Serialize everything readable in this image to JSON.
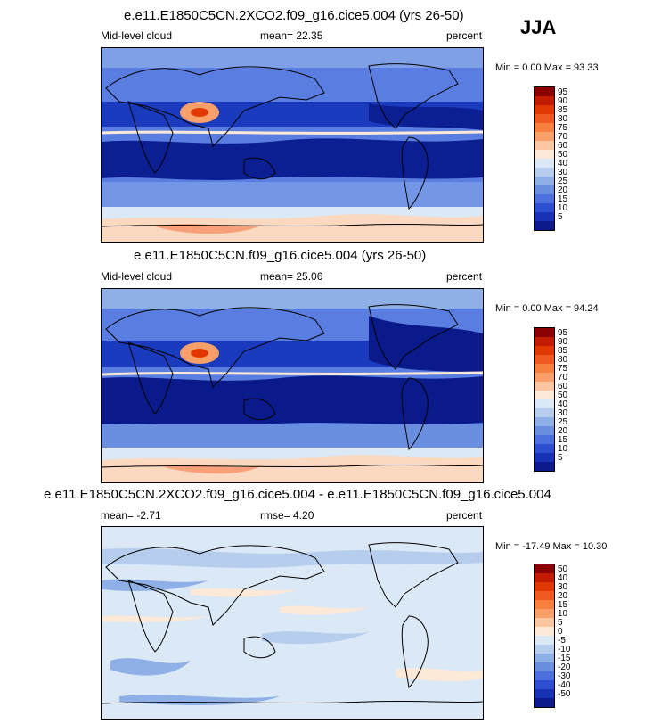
{
  "season": "JJA",
  "panels": [
    {
      "title": "e.e11.E1850C5CN.2XCO2.f09_g16.cice5.004 (yrs 26-50)",
      "left_label": "Mid-level cloud",
      "center_label": "mean=  22.35",
      "right_label": "percent",
      "minmax": "Min =   0.00 Max =  93.33"
    },
    {
      "title": "e.e11.E1850C5CN.f09_g16.cice5.004 (yrs 26-50)",
      "left_label": "Mid-level cloud",
      "center_label": "mean=  25.06",
      "right_label": "percent",
      "minmax": "Min =   0.00 Max =  94.24"
    },
    {
      "title": "e.e11.E1850C5CN.2XCO2.f09_g16.cice5.004 - e.e11.E1850C5CN.f09_g16.cice5.004",
      "left_label": "mean=  -2.71",
      "center_label": "rmse=  4.20",
      "right_label": "percent",
      "minmax": "Min = -17.49 Max =  10.30"
    }
  ],
  "legend_abs": {
    "labels": [
      "95",
      "90",
      "85",
      "80",
      "75",
      "70",
      "60",
      "50",
      "40",
      "30",
      "25",
      "20",
      "15",
      "10",
      "5"
    ],
    "colors": [
      "#8b0000",
      "#c21b00",
      "#e03800",
      "#f05a22",
      "#f7803f",
      "#f9a06a",
      "#fbc6a0",
      "#fde9d8",
      "#dbe8f6",
      "#b6cdee",
      "#8fb0e6",
      "#6a8fe0",
      "#4c70dd",
      "#2c4fd2",
      "#1732b4",
      "#0a1a8a"
    ]
  },
  "legend_diff": {
    "labels": [
      "50",
      "40",
      "30",
      "20",
      "15",
      "10",
      "5",
      "0",
      "-5",
      "-10",
      "-15",
      "-20",
      "-30",
      "-40",
      "-50"
    ],
    "colors": [
      "#8b0000",
      "#c21b00",
      "#e03800",
      "#f05a22",
      "#f7803f",
      "#f9a06a",
      "#fbc6a0",
      "#fde9d8",
      "#dbe8f6",
      "#b6cdee",
      "#8fb0e6",
      "#6a8fe0",
      "#4c70dd",
      "#2c4fd2",
      "#1732b4",
      "#0a1a8a"
    ]
  }
}
